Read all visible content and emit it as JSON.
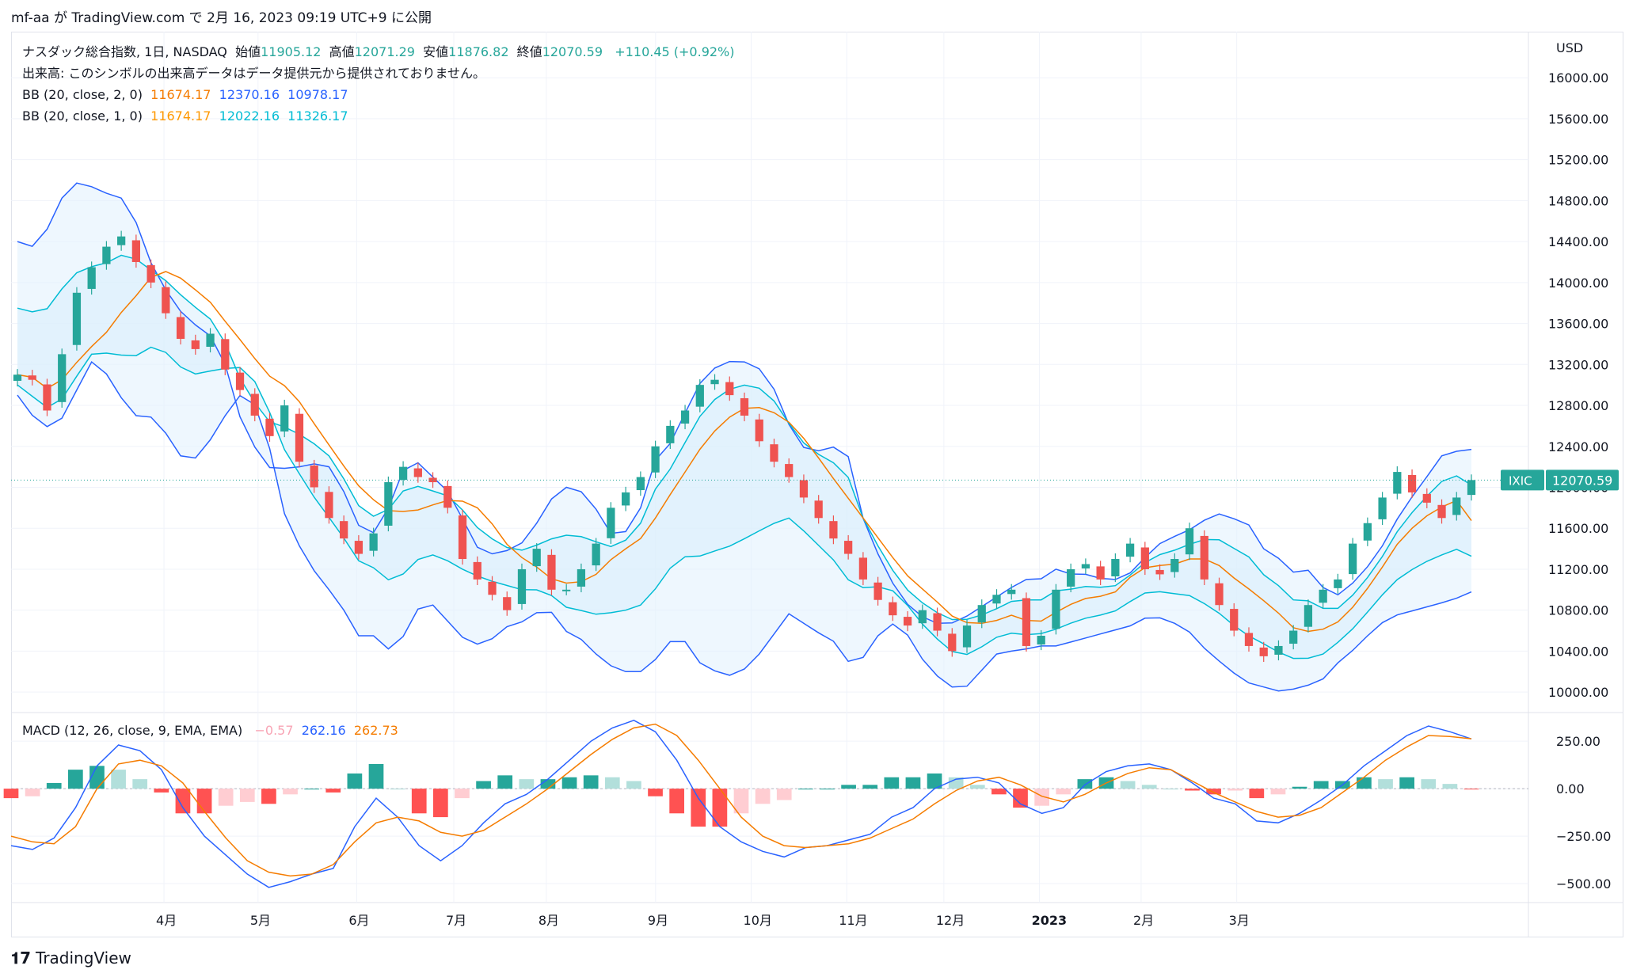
{
  "header": {
    "text": "mf-aa が TradingView.com で 2月 16, 2023 09:19 UTC+9 に公開"
  },
  "legend": {
    "symbol_line": "ナスダック総合指数, 1日, NASDAQ",
    "open_label": "始値",
    "open_value": "11905.12",
    "high_label": "高値",
    "high_value": "12071.29",
    "low_label": "安値",
    "low_value": "11876.82",
    "close_label": "終値",
    "close_value": "12070.59",
    "change": "+110.45 (+0.92%)",
    "volume_note": "出来高: このシンボルの出来高データはデータ提供元から提供されておりません。",
    "bb1_label": "BB (20, close, 2, 0)",
    "bb1_basis": "11674.17",
    "bb1_upper": "12370.16",
    "bb1_lower": "10978.17",
    "bb2_label": "BB (20, close, 1, 0)",
    "bb2_basis": "11674.17",
    "bb2_upper": "12022.16",
    "bb2_lower": "11326.17"
  },
  "macd_legend": {
    "label": "MACD (12, 26, close, 9, EMA, EMA)",
    "hist": "−0.57",
    "macd": "262.16",
    "signal": "262.73"
  },
  "currency": "USD",
  "price_badge": {
    "symbol": "IXIC",
    "value": "12070.59"
  },
  "footer": {
    "brand": "TradingView"
  },
  "colors": {
    "up": "#26a69a",
    "down": "#ef5350",
    "bb_outer": "#2962ff",
    "bb_inner": "#00bcd4",
    "basis": "#f57c00",
    "fill": "#e3f2fd",
    "macd": "#2962ff",
    "signal": "#f57c00",
    "hist_up_strong": "#26a69a",
    "hist_up_weak": "#b2dfdb",
    "hist_down_strong": "#ff5252",
    "hist_down_weak": "#ffcdd2"
  },
  "chart_data": [
    {
      "type": "candlestick",
      "title": "ナスダック総合指数, 1日, NASDAQ",
      "ylim": [
        9800,
        16450
      ],
      "y_ticks": [
        "16000.00",
        "15600.00",
        "15200.00",
        "14800.00",
        "14400.00",
        "14000.00",
        "13600.00",
        "13200.00",
        "12800.00",
        "12400.00",
        "12000.00",
        "11600.00",
        "11200.00",
        "10800.00",
        "10400.00",
        "10000.00"
      ],
      "x_ticks": [
        "4月",
        "5月",
        "6月",
        "7月",
        "8月",
        "9月",
        "10月",
        "11月",
        "12月",
        "2023",
        "2月",
        "3月"
      ],
      "last_close": 12070.59,
      "closes_weekly": [
        13100,
        13050,
        12750,
        13300,
        13900,
        14150,
        14350,
        14450,
        14200,
        14000,
        13700,
        13450,
        13350,
        13500,
        13150,
        12950,
        12700,
        12500,
        12800,
        12250,
        12000,
        11700,
        11500,
        11350,
        11550,
        12050,
        12200,
        12100,
        12050,
        11800,
        11300,
        11100,
        10950,
        10800,
        11200,
        11400,
        11000,
        11000,
        11200,
        11450,
        11800,
        11950,
        12100,
        12400,
        12600,
        12750,
        13000,
        13050,
        12900,
        12700,
        12450,
        12250,
        12100,
        11900,
        11700,
        11500,
        11350,
        11100,
        10900,
        10750,
        10650,
        10800,
        10600,
        10400,
        10650,
        10850,
        10950,
        11000,
        10450,
        10550,
        11000,
        11200,
        11250,
        11100,
        11300,
        11450,
        11200,
        11150,
        11300,
        11600,
        11100,
        10850,
        10600,
        10450,
        10350,
        10450,
        10600,
        10850,
        11000,
        11100,
        11450,
        11650,
        11900,
        12150,
        11950,
        11850,
        11700,
        11900,
        12070.59
      ],
      "bb_upper_weekly": [
        14400,
        14350,
        14550,
        14900,
        15000,
        14900,
        14850,
        14800,
        14300,
        14000,
        13750,
        13600,
        13500,
        13200,
        12650,
        12350,
        12150,
        12200,
        12200,
        12250,
        12150,
        11700,
        11500,
        11700,
        12150,
        12250,
        12100,
        11950,
        11650,
        11350,
        11350,
        11400,
        11500,
        11800,
        12000,
        12000,
        11850,
        11550,
        11550,
        11800,
        12300,
        12450,
        12800,
        13100,
        13200,
        13250,
        13200,
        13100,
        12700,
        12400,
        12350,
        12400,
        12300,
        11650,
        11300,
        11000,
        10800,
        10700,
        10650,
        10700,
        10800,
        10900,
        11000,
        11100,
        11100,
        11200,
        11150,
        11150,
        11100,
        11100,
        11200,
        11400,
        11500,
        11550,
        11650,
        11750,
        11700,
        11650,
        11400,
        11300,
        11150,
        11200,
        10950,
        10950,
        11150,
        11300,
        11600,
        11850,
        12050,
        12300,
        12350,
        12370.16
      ],
      "bb_lower_weekly": [
        12900,
        12650,
        12550,
        12900,
        13250,
        13050,
        12700,
        12700,
        12500,
        12200,
        12400,
        12700,
        12950,
        12700,
        11800,
        11400,
        11100,
        10900,
        10550,
        10550,
        10350,
        10800,
        10850,
        10650,
        10450,
        10500,
        10650,
        10700,
        10850,
        10600,
        10500,
        10300,
        10200,
        10200,
        10350,
        10600,
        10300,
        10200,
        10150,
        10300,
        10550,
        10800,
        10600,
        10550,
        10300,
        10350,
        10700,
        10600,
        10300,
        10100,
        10000,
        10200,
        10400,
        10400,
        10450,
        10450,
        10500,
        10550,
        10600,
        10650,
        10750,
        10700,
        10600,
        10400,
        10250,
        10100,
        10050,
        10000,
        10050,
        10100,
        10300,
        10450,
        10650,
        10750,
        10800,
        10850,
        10900,
        10978.17
      ],
      "bb_basis_at_end": 11674.17,
      "bb_inner_upper_at_end": 12022.16,
      "bb_inner_lower_at_end": 11326.17
    },
    {
      "type": "line",
      "title": "MACD (12, 26, close, 9, EMA, EMA)",
      "ylim": [
        -600,
        380
      ],
      "y_ticks": [
        "250.00",
        "0.00",
        "−250.00",
        "−500.00"
      ],
      "series": [
        {
          "name": "MACD",
          "values": [
            -300,
            -320,
            -260,
            -100,
            120,
            230,
            200,
            100,
            -100,
            -250,
            -350,
            -450,
            -520,
            -490,
            -450,
            -420,
            -200,
            -50,
            -150,
            -300,
            -380,
            -300,
            -180,
            -80,
            -30,
            50,
            150,
            250,
            320,
            360,
            300,
            150,
            -50,
            -200,
            -280,
            -330,
            -360,
            -310,
            -300,
            -270,
            -240,
            -150,
            -100,
            0,
            50,
            60,
            30,
            -80,
            -130,
            -100,
            20,
            90,
            120,
            130,
            100,
            30,
            -50,
            -80,
            -170,
            -180,
            -130,
            -60,
            20,
            120,
            200,
            280,
            330,
            300,
            262.16
          ]
        },
        {
          "name": "Signal",
          "values": [
            -250,
            -280,
            -290,
            -200,
            0,
            130,
            150,
            120,
            30,
            -120,
            -260,
            -380,
            -440,
            -460,
            -450,
            -400,
            -280,
            -180,
            -150,
            -170,
            -230,
            -250,
            -220,
            -150,
            -80,
            0,
            90,
            180,
            260,
            320,
            340,
            280,
            150,
            0,
            -150,
            -250,
            -300,
            -310,
            -300,
            -290,
            -260,
            -210,
            -160,
            -80,
            -10,
            40,
            60,
            20,
            -40,
            -70,
            -30,
            30,
            80,
            110,
            100,
            40,
            -20,
            -70,
            -120,
            -150,
            -140,
            -100,
            -20,
            60,
            150,
            220,
            280,
            275,
            262.73
          ]
        }
      ],
      "histogram_last": -0.57
    }
  ]
}
